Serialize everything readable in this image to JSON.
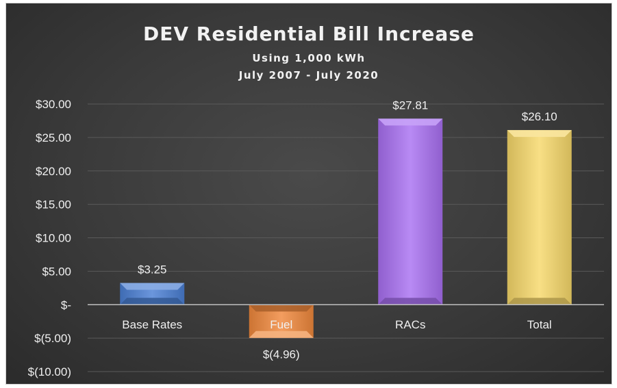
{
  "chart_data": {
    "type": "bar",
    "title": "DEV Residential Bill Increase",
    "subtitle_lines": [
      "Using 1,000 kWh",
      "July 2007 - July 2020"
    ],
    "categories": [
      "Base Rates",
      "Fuel",
      "RACs",
      "Total"
    ],
    "values": [
      3.25,
      -4.96,
      27.81,
      26.1
    ],
    "data_labels": [
      "$3.25",
      "$(4.96)",
      "$27.81",
      "$26.10"
    ],
    "bar_colors": [
      "#4a7fd4",
      "#f0883c",
      "#a970f2",
      "#f7d86a"
    ],
    "ylim": [
      -10,
      30
    ],
    "yticks": [
      30,
      25,
      20,
      15,
      10,
      5,
      0,
      -5,
      -10
    ],
    "ytick_labels": [
      "$30.00",
      "$25.00",
      "$20.00",
      "$15.00",
      "$10.00",
      "$5.00",
      "$-",
      "$(5.00)",
      "$(10.00)"
    ],
    "xlabel": "",
    "ylabel": "",
    "grid": true,
    "legend": "none"
  }
}
